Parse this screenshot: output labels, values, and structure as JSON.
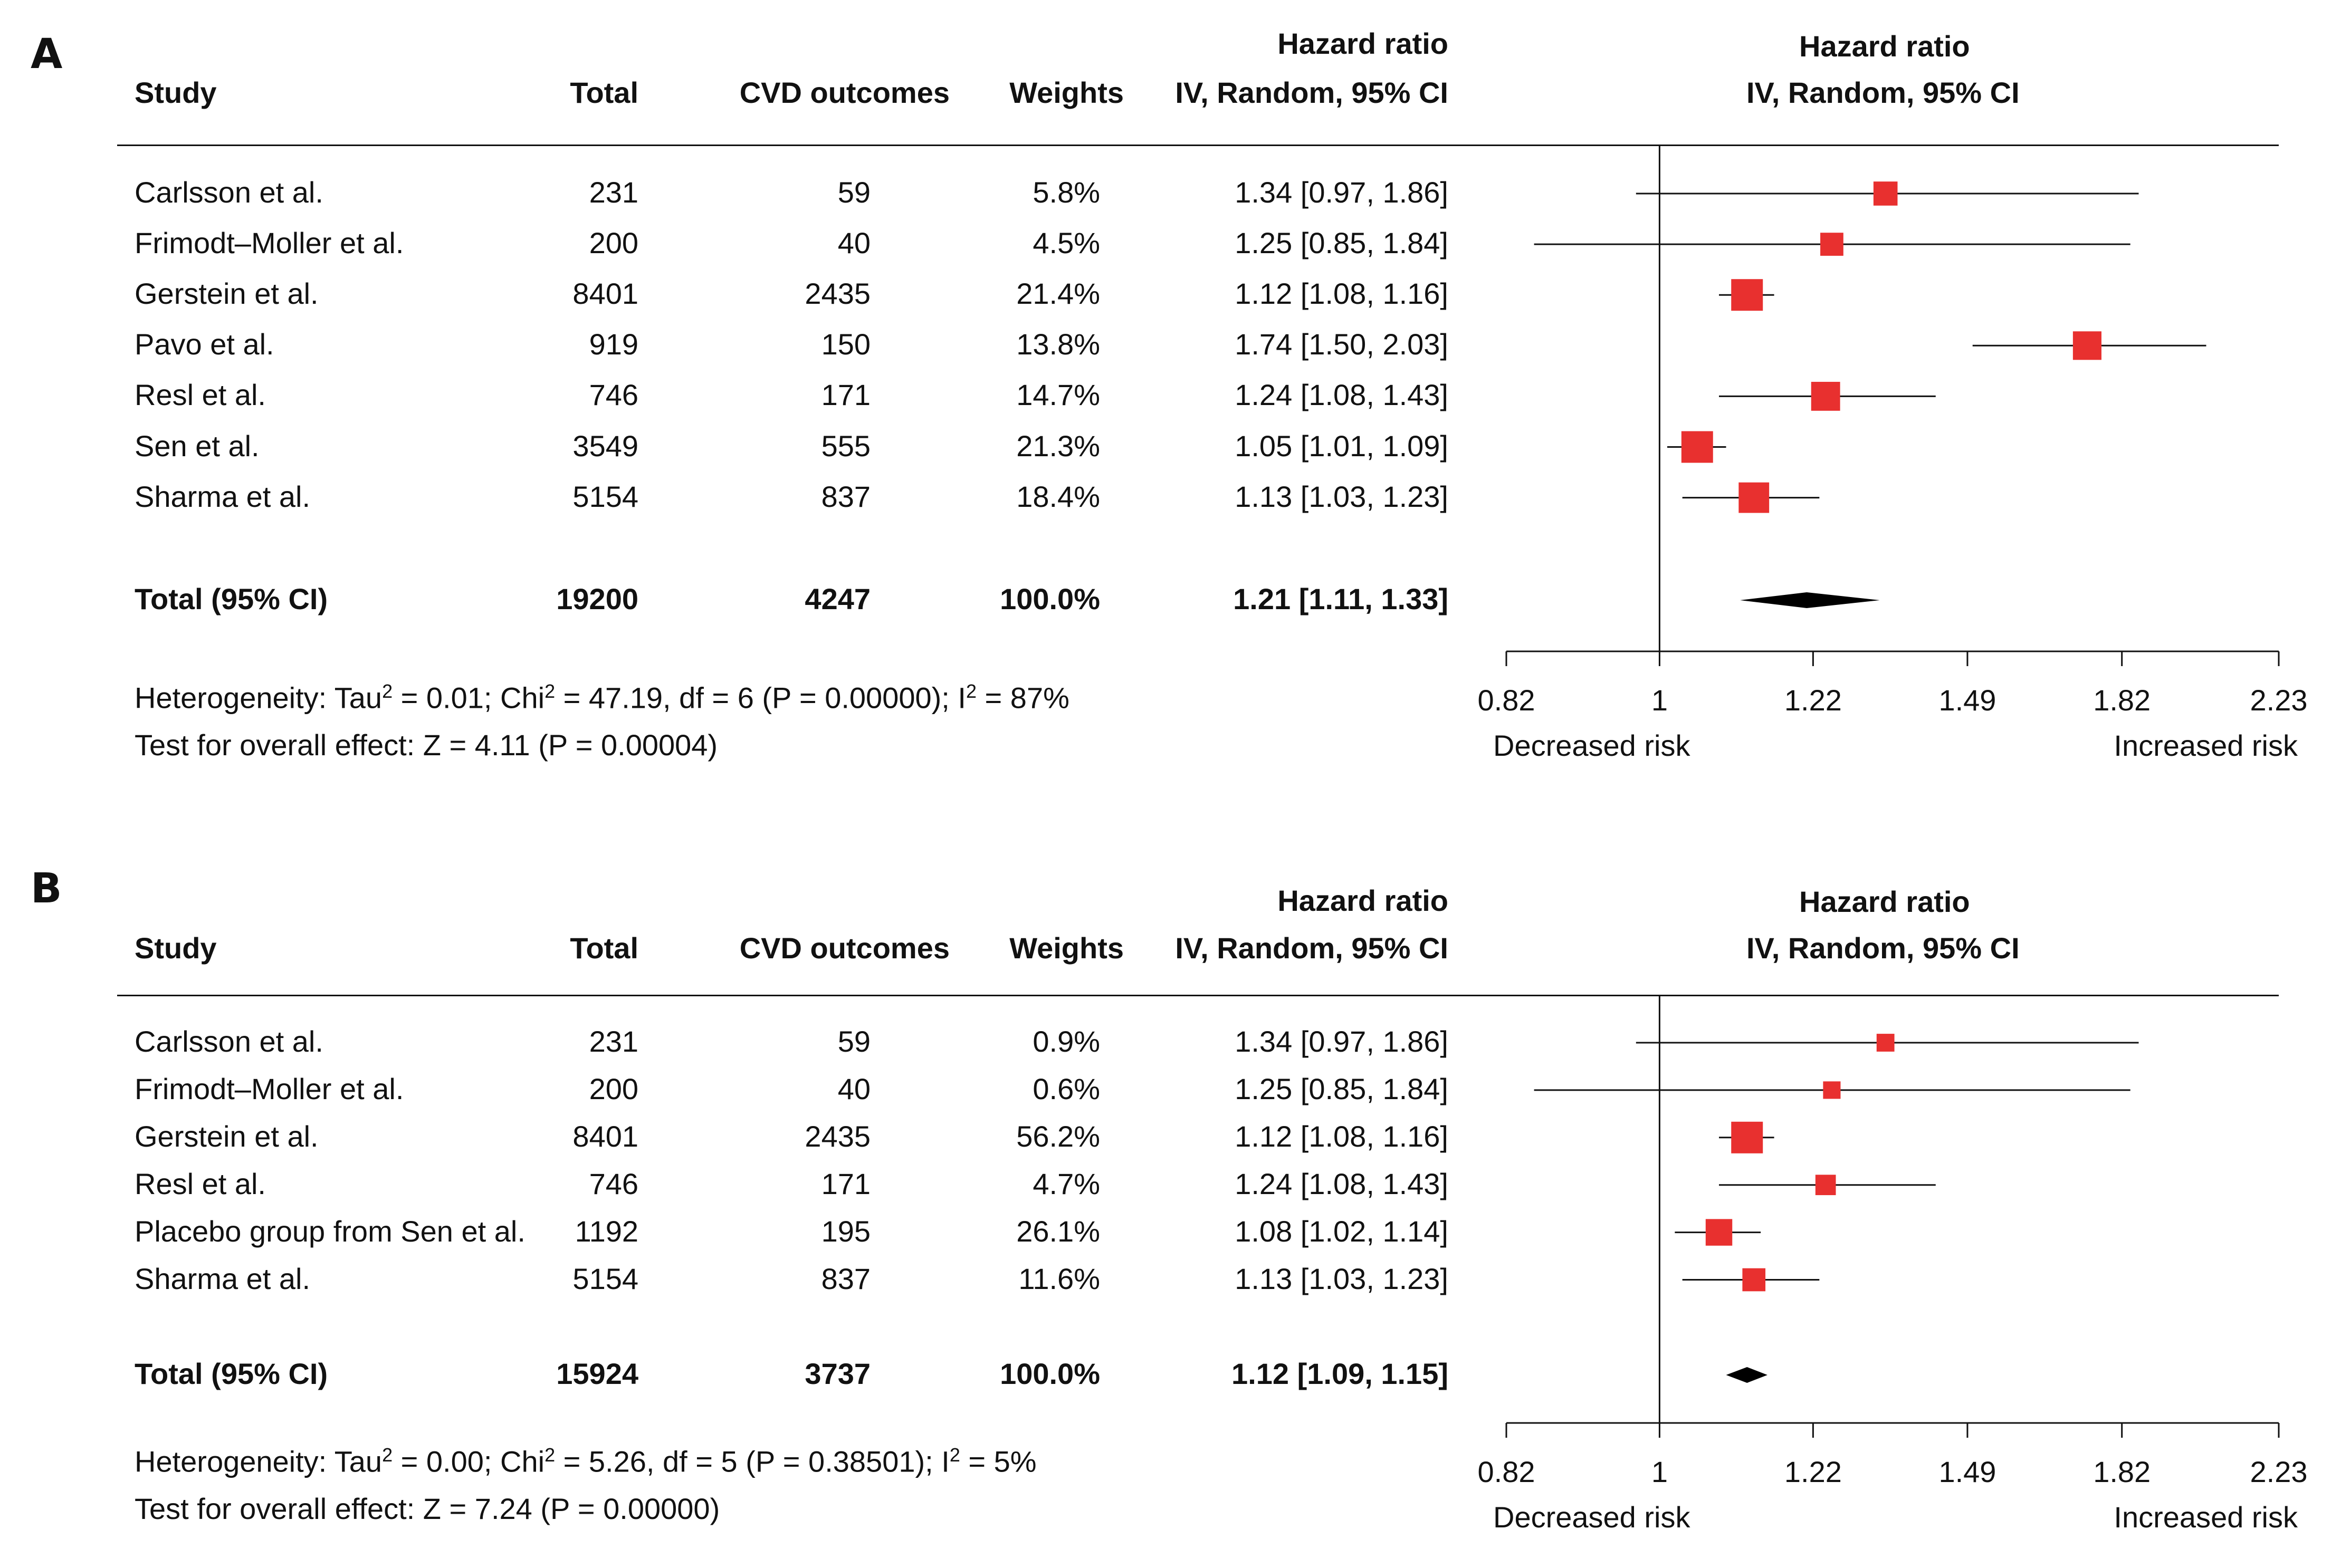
{
  "chart_data": [
    {
      "type": "forest",
      "panel": "A",
      "columns": {
        "study": "Study",
        "total": "Total",
        "events": "CVD outcomes",
        "weights": "Weights",
        "hr_line1": "Hazard ratio",
        "hr_line2": "IV, Random, 95% CI"
      },
      "plot_header": {
        "line1": "Hazard ratio",
        "line2": "IV, Random, 95% CI"
      },
      "rows": [
        {
          "study": "Carlsson et al.",
          "total": "231",
          "events": "59",
          "weight": "5.8%",
          "hr_text": "1.34 [0.97, 1.86]",
          "hr": 1.34,
          "lo": 0.97,
          "hi": 1.86,
          "w": 5.8
        },
        {
          "study": "Frimodt–Moller et al.",
          "total": "200",
          "events": "40",
          "weight": "4.5%",
          "hr_text": "1.25 [0.85, 1.84]",
          "hr": 1.25,
          "lo": 0.85,
          "hi": 1.84,
          "w": 4.5
        },
        {
          "study": "Gerstein et al.",
          "total": "8401",
          "events": "2435",
          "weight": "21.4%",
          "hr_text": "1.12 [1.08, 1.16]",
          "hr": 1.12,
          "lo": 1.08,
          "hi": 1.16,
          "w": 21.4
        },
        {
          "study": "Pavo et al.",
          "total": "919",
          "events": "150",
          "weight": "13.8%",
          "hr_text": "1.74 [1.50, 2.03]",
          "hr": 1.74,
          "lo": 1.5,
          "hi": 2.03,
          "w": 13.8
        },
        {
          "study": "Resl et al.",
          "total": "746",
          "events": "171",
          "weight": "14.7%",
          "hr_text": "1.24 [1.08, 1.43]",
          "hr": 1.24,
          "lo": 1.08,
          "hi": 1.43,
          "w": 14.7
        },
        {
          "study": "Sen et al.",
          "total": "3549",
          "events": "555",
          "weight": "21.3%",
          "hr_text": "1.05 [1.01, 1.09]",
          "hr": 1.05,
          "lo": 1.01,
          "hi": 1.09,
          "w": 21.3
        },
        {
          "study": "Sharma et al.",
          "total": "5154",
          "events": "837",
          "weight": "18.4%",
          "hr_text": "1.13 [1.03, 1.23]",
          "hr": 1.13,
          "lo": 1.03,
          "hi": 1.23,
          "w": 18.4
        }
      ],
      "total": {
        "label": "Total (95% CI)",
        "total": "19200",
        "events": "4247",
        "weight": "100.0%",
        "hr_text": "1.21 [1.11,  1.33]",
        "hr": 1.21,
        "lo": 1.11,
        "hi": 1.33
      },
      "heterogeneity": {
        "prefix": "Heterogeneity: Tau",
        "tau2": " = 0.01; Chi",
        "chi2": " = 47.19, df = 6 (P = 0.00000); I",
        "i2": " = 87%",
        "sup": "2"
      },
      "overall_effect": "Test for overall effect: Z = 4.11 (P = 0.00004)",
      "x_axis": {
        "scale": "log",
        "ticks": [
          0.82,
          1,
          1.22,
          1.49,
          1.82,
          2.23
        ],
        "tick_labels": [
          "0.82",
          "1",
          "1.22",
          "1.49",
          "1.82",
          "2.23"
        ],
        "left_label": "Decreased risk",
        "right_label": "Increased risk",
        "reference": 1
      }
    },
    {
      "type": "forest",
      "panel": "B",
      "columns": {
        "study": "Study",
        "total": "Total",
        "events": "CVD outcomes",
        "weights": "Weights",
        "hr_line1": "Hazard ratio",
        "hr_line2": "IV, Random, 95% CI"
      },
      "plot_header": {
        "line1": "Hazard ratio",
        "line2": "IV, Random, 95% CI"
      },
      "rows": [
        {
          "study": "Carlsson et al.",
          "total": "231",
          "events": "59",
          "weight": "0.9%",
          "hr_text": "1.34 [0.97, 1.86]",
          "hr": 1.34,
          "lo": 0.97,
          "hi": 1.86,
          "w": 0.9
        },
        {
          "study": "Frimodt–Moller et al.",
          "total": "200",
          "events": "40",
          "weight": "0.6%",
          "hr_text": "1.25 [0.85, 1.84]",
          "hr": 1.25,
          "lo": 0.85,
          "hi": 1.84,
          "w": 0.6
        },
        {
          "study": "Gerstein et al.",
          "total": "8401",
          "events": "2435",
          "weight": "56.2%",
          "hr_text": "1.12 [1.08, 1.16]",
          "hr": 1.12,
          "lo": 1.08,
          "hi": 1.16,
          "w": 56.2
        },
        {
          "study": "Resl et al.",
          "total": "746",
          "events": "171",
          "weight": "4.7%",
          "hr_text": "1.24 [1.08, 1.43]",
          "hr": 1.24,
          "lo": 1.08,
          "hi": 1.43,
          "w": 4.7
        },
        {
          "study": "Placebo group from Sen et al.",
          "total": "1192",
          "events": "195",
          "weight": "26.1%",
          "hr_text": "1.08 [1.02, 1.14]",
          "hr": 1.08,
          "lo": 1.02,
          "hi": 1.14,
          "w": 26.1
        },
        {
          "study": "Sharma et al.",
          "total": "5154",
          "events": "837",
          "weight": "11.6%",
          "hr_text": "1.13 [1.03, 1.23]",
          "hr": 1.13,
          "lo": 1.03,
          "hi": 1.23,
          "w": 11.6
        }
      ],
      "total": {
        "label": "Total (95% CI)",
        "total": "15924",
        "events": "3737",
        "weight": "100.0%",
        "hr_text": "1.12 [1.09,  1.15]",
        "hr": 1.12,
        "lo": 1.09,
        "hi": 1.15
      },
      "heterogeneity": {
        "prefix": "Heterogeneity: Tau",
        "tau2": " = 0.00; Chi",
        "chi2": " = 5.26, df = 5 (P = 0.38501); I",
        "i2": " = 5%",
        "sup": "2"
      },
      "overall_effect": "Test for overall effect: Z = 7.24 (P = 0.00000)",
      "x_axis": {
        "scale": "log",
        "ticks": [
          0.82,
          1,
          1.22,
          1.49,
          1.82,
          2.23
        ],
        "tick_labels": [
          "0.82",
          "1",
          "1.22",
          "1.49",
          "1.82",
          "2.23"
        ],
        "left_label": "Decreased risk",
        "right_label": "Increased risk",
        "reference": 1
      }
    }
  ],
  "colors": {
    "box": "#e8302f",
    "line": "#111111",
    "diamond": "#000000"
  }
}
